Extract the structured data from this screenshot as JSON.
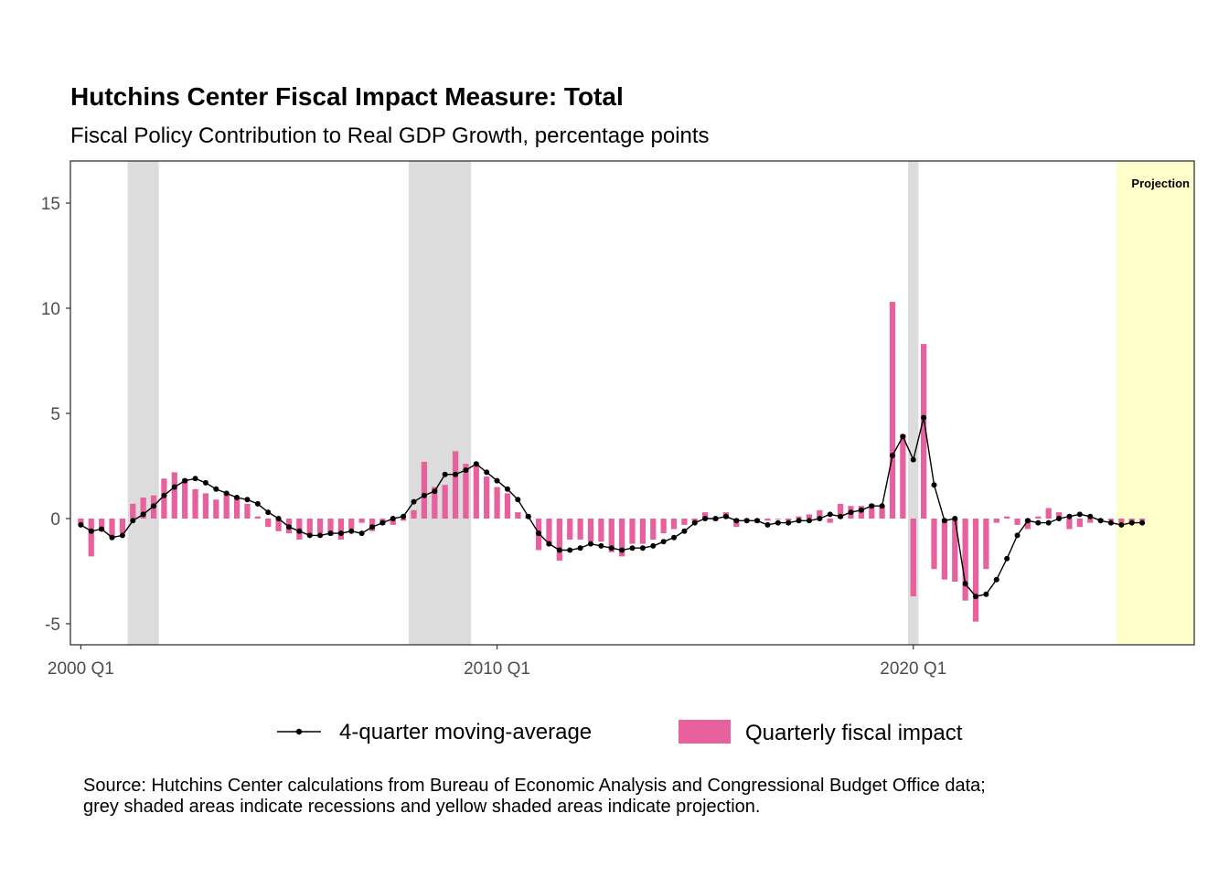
{
  "chart_data": {
    "type": "bar",
    "title": "Hutchins Center Fiscal Impact Measure: Total",
    "subtitle": "Fiscal Policy Contribution to Real GDP Growth, percentage points",
    "xlabel": "",
    "ylabel": "",
    "start_quarter": "2000 Q1",
    "xlim": [
      "1999 Q4",
      "2026 Q4"
    ],
    "ylim": [
      -6,
      17
    ],
    "yticks": [
      -5,
      0,
      5,
      10,
      15
    ],
    "xtick_labels": [
      "2000 Q1",
      "2010 Q1",
      "2020 Q1"
    ],
    "grid": false,
    "legend_position": "bottom",
    "annotation": "Projection",
    "recessions": [
      {
        "start": "2001 Q2",
        "end": "2002 Q1"
      },
      {
        "start": "2008 Q1",
        "end": "2009 Q3"
      },
      {
        "start": "2020 Q1",
        "end": "2020 Q2"
      }
    ],
    "projection": {
      "start": "2025 Q1",
      "end": "2026 Q4"
    },
    "series": [
      {
        "name": "Quarterly fiscal impact",
        "kind": "bar",
        "color": "#E7619F",
        "values": [
          -0.3,
          -1.8,
          -0.6,
          -0.9,
          -0.7,
          0.7,
          1.0,
          1.1,
          1.9,
          2.2,
          1.9,
          1.4,
          1.2,
          0.9,
          1.2,
          1.0,
          0.7,
          0.1,
          -0.4,
          -0.6,
          -0.7,
          -1.0,
          -0.8,
          -0.7,
          -0.8,
          -1.0,
          -0.5,
          -0.2,
          -0.6,
          -0.3,
          -0.3,
          -0.1,
          0.4,
          2.7,
          1.5,
          1.6,
          3.2,
          2.6,
          2.5,
          2.0,
          1.5,
          1.2,
          0.3,
          0.2,
          -1.5,
          -1.3,
          -2.0,
          -1.0,
          -1.0,
          -1.1,
          -1.1,
          -1.6,
          -1.8,
          -1.2,
          -1.2,
          -1.0,
          -0.7,
          -0.5,
          -0.3,
          -0.2,
          0.3,
          -0.1,
          0.3,
          -0.4,
          0.0,
          -0.2,
          -0.1,
          0.0,
          -0.1,
          0.1,
          0.2,
          0.4,
          -0.2,
          0.7,
          0.6,
          0.6,
          0.7,
          0.6,
          10.3,
          4.0,
          -3.7,
          8.3,
          -2.4,
          -2.9,
          -3.0,
          -3.9,
          -4.9,
          -2.4,
          -0.2,
          0.1,
          -0.3,
          -0.5,
          0.1,
          0.5,
          0.3,
          -0.5,
          -0.4,
          -0.2,
          -0.1,
          -0.1,
          -0.2,
          -0.2,
          -0.1
        ]
      },
      {
        "name": "4-quarter moving-average",
        "kind": "line",
        "color": "#000000",
        "values": [
          -0.3,
          -0.6,
          -0.5,
          -0.9,
          -0.8,
          -0.1,
          0.2,
          0.6,
          1.1,
          1.5,
          1.8,
          1.9,
          1.7,
          1.4,
          1.2,
          1.0,
          0.9,
          0.7,
          0.3,
          0.0,
          -0.4,
          -0.6,
          -0.8,
          -0.8,
          -0.7,
          -0.7,
          -0.6,
          -0.7,
          -0.4,
          -0.2,
          0.0,
          0.1,
          0.8,
          1.1,
          1.3,
          2.1,
          2.1,
          2.3,
          2.6,
          2.2,
          1.8,
          1.4,
          0.9,
          0.1,
          -0.7,
          -1.2,
          -1.5,
          -1.5,
          -1.4,
          -1.2,
          -1.3,
          -1.4,
          -1.5,
          -1.4,
          -1.4,
          -1.3,
          -1.1,
          -0.9,
          -0.6,
          -0.2,
          0.0,
          0.0,
          0.1,
          -0.1,
          -0.1,
          -0.1,
          -0.3,
          -0.2,
          -0.2,
          -0.1,
          -0.1,
          0.0,
          0.2,
          0.1,
          0.3,
          0.4,
          0.6,
          0.6,
          3.0,
          3.9,
          2.8,
          4.8,
          1.6,
          -0.1,
          0.0,
          -3.1,
          -3.7,
          -3.6,
          -2.9,
          -1.9,
          -0.8,
          -0.1,
          -0.2,
          -0.2,
          0.0,
          0.1,
          0.2,
          0.1,
          -0.1,
          -0.2,
          -0.3,
          -0.2,
          -0.2
        ]
      }
    ],
    "source_note": [
      "Source: Hutchins Center calculations from Bureau of Economic Analysis and Congressional Budget Office data;",
      "grey shaded areas indicate recessions and yellow shaded areas indicate projection."
    ]
  }
}
